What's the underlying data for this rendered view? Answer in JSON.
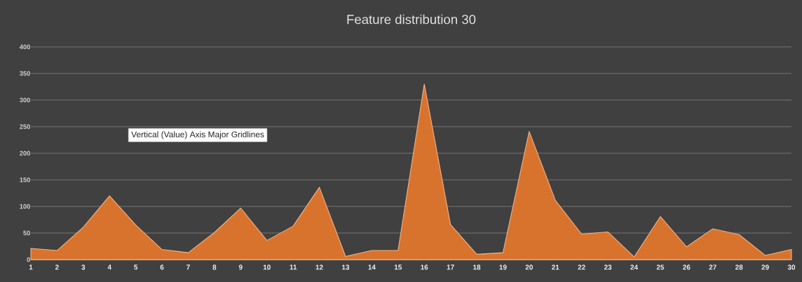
{
  "chart_data": {
    "type": "area",
    "title": "Feature distribution 30",
    "categories": [
      "1",
      "2",
      "3",
      "4",
      "5",
      "6",
      "7",
      "8",
      "9",
      "10",
      "11",
      "12",
      "13",
      "14",
      "15",
      "16",
      "17",
      "18",
      "19",
      "20",
      "21",
      "22",
      "23",
      "24",
      "25",
      "26",
      "27",
      "28",
      "29",
      "30"
    ],
    "values": [
      21,
      17,
      61,
      120,
      65,
      19,
      13,
      51,
      97,
      36,
      63,
      136,
      6,
      17,
      17,
      330,
      66,
      10,
      13,
      241,
      111,
      48,
      52,
      5,
      81,
      24,
      58,
      47,
      8,
      19
    ],
    "color": "#d8732e",
    "ylim": [
      0,
      400
    ],
    "yticks": [
      0,
      50,
      100,
      150,
      200,
      250,
      300,
      350,
      400
    ],
    "grid": "y",
    "annotations": [
      "Vertical (Value) Axis Major Gridlines"
    ]
  }
}
